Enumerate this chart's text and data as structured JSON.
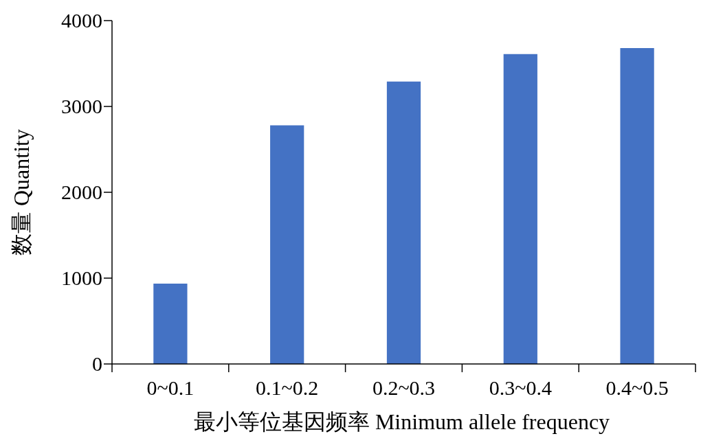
{
  "chart_data": {
    "type": "bar",
    "xlabel": "最小等位基因频率 Minimum allele frequency",
    "ylabel": "数量 Quantity",
    "categories": [
      "0~0.1",
      "0.1~0.2",
      "0.2~0.3",
      "0.3~0.4",
      "0.4~0.5"
    ],
    "values": [
      936,
      2780,
      3290,
      3610,
      3680
    ],
    "color": "#4472c4",
    "ylim": [
      0,
      4000
    ],
    "yticks": [
      0,
      1000,
      2000,
      3000,
      4000
    ],
    "grid": false
  }
}
